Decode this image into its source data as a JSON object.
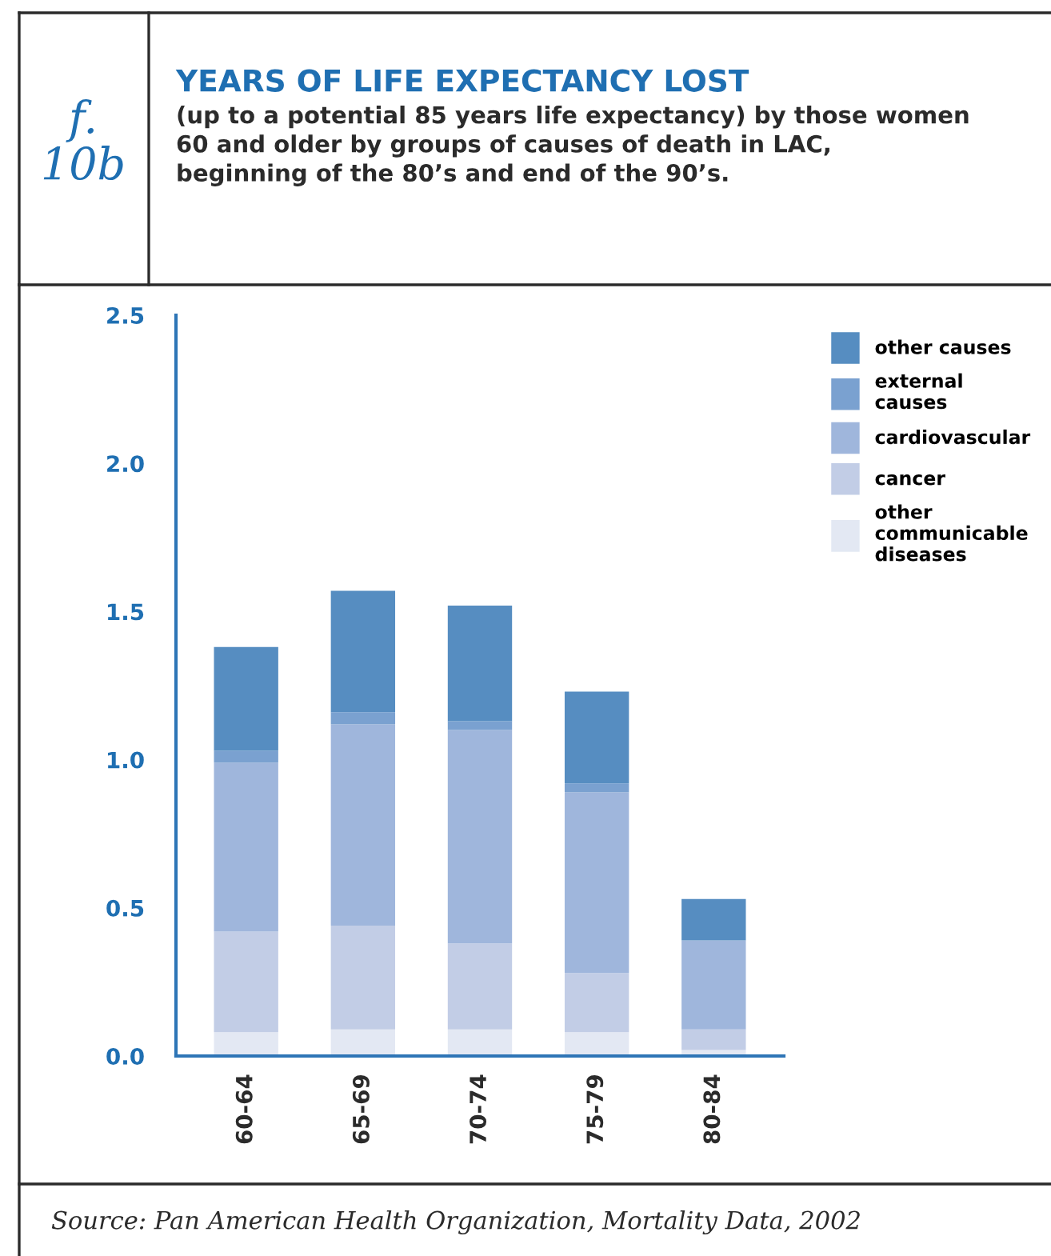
{
  "chart_data": {
    "type": "bar",
    "stacked": true,
    "title": "YEARS OF LIFE EXPECTANCY LOST",
    "subtitle": "(up to a potential 85 years life expectancy) by those women\n60 and older by groups of causes of death in LAC,\nbeginning of the 80’s and end of the 90’s.",
    "annotations": [
      "f.\n10b",
      "Source: Pan American Health Organization, Mortality Data, 2002"
    ],
    "categories": [
      "60-64",
      "65-69",
      "70-74",
      "75-79",
      "80-84"
    ],
    "series": [
      {
        "name": "other\ncommunicable\ndiseases",
        "color": "#e3e8f3",
        "values": [
          0.08,
          0.09,
          0.09,
          0.08,
          0.02
        ]
      },
      {
        "name": "cancer",
        "color": "#c2cde6",
        "values": [
          0.34,
          0.35,
          0.29,
          0.2,
          0.07
        ]
      },
      {
        "name": "cardiovascular",
        "color": "#9fb6dc",
        "values": [
          0.57,
          0.68,
          0.72,
          0.61,
          0.3
        ]
      },
      {
        "name": "external\ncauses",
        "color": "#7aa1d0",
        "values": [
          0.04,
          0.04,
          0.03,
          0.03,
          0.0
        ]
      },
      {
        "name": "other causes",
        "color": "#568dc1",
        "values": [
          0.35,
          0.41,
          0.39,
          0.31,
          0.14
        ]
      }
    ],
    "ylim": [
      0,
      2.5
    ],
    "yticks": [
      {
        "value": 0,
        "label": "0.0"
      },
      0.5,
      {
        "value": 1,
        "label": "1.0"
      },
      1.5,
      {
        "value": 2,
        "label": "2.0"
      },
      2.5
    ],
    "grid": false,
    "legend": "top right"
  }
}
